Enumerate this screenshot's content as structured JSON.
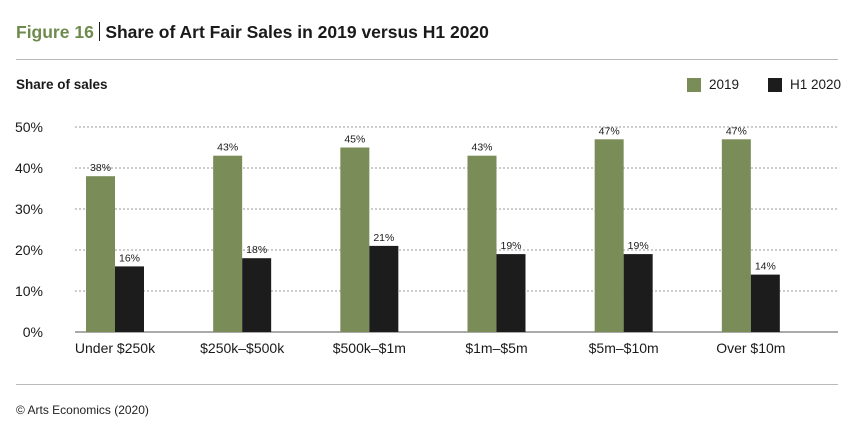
{
  "header": {
    "figure_label": "Figure 16",
    "title": "Share of Art Fair Sales in 2019 versus H1 2020"
  },
  "colors": {
    "series_2019": "#7a8c58",
    "series_h1_2020": "#1c1c1c",
    "figure_label": "#6e8b4e",
    "grid": "#9a9a9a"
  },
  "source": "© Arts Economics (2020)",
  "chart_data": {
    "type": "bar",
    "title": "Share of Art Fair Sales in 2019 versus H1 2020",
    "ylabel": "Share of sales",
    "xlabel": "",
    "categories": [
      "Under $250k",
      "$250k–$500k",
      "$500k–$1m",
      "$1m–$5m",
      "$5m–$10m",
      "Over $10m"
    ],
    "series": [
      {
        "name": "2019",
        "values": [
          38,
          43,
          45,
          43,
          47,
          47
        ]
      },
      {
        "name": "H1 2020",
        "values": [
          16,
          18,
          21,
          19,
          19,
          14
        ]
      }
    ],
    "ylim": [
      0,
      50
    ],
    "yticks": [
      "0%",
      "10%",
      "20%",
      "30%",
      "40%",
      "50%"
    ],
    "value_suffix": "%",
    "grid": true,
    "legend_position": "top-right"
  }
}
